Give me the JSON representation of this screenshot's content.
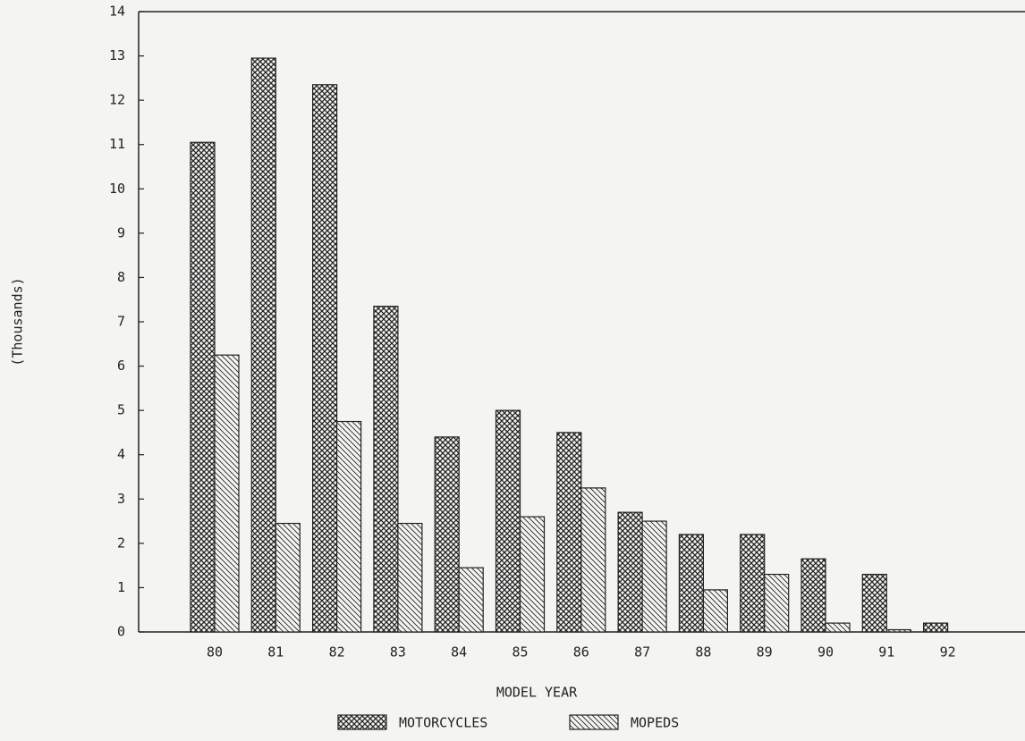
{
  "chart_data": {
    "type": "bar",
    "x_label": "MODEL YEAR",
    "y_label": "(Thousands)",
    "categories": [
      "80",
      "81",
      "82",
      "83",
      "84",
      "85",
      "86",
      "87",
      "88",
      "89",
      "90",
      "91",
      "92"
    ],
    "series": [
      {
        "name": "MOTORCYCLES",
        "color": "#222222",
        "pattern": "crosshatch",
        "values": [
          11.05,
          12.95,
          12.35,
          7.35,
          4.4,
          5.0,
          4.5,
          2.7,
          2.2,
          2.2,
          1.65,
          1.3,
          0.2
        ]
      },
      {
        "name": "MOPEDS",
        "color": "#222222",
        "pattern": "diagonal",
        "values": [
          6.25,
          2.45,
          4.75,
          2.45,
          1.45,
          2.6,
          3.25,
          2.5,
          0.95,
          1.3,
          0.2,
          0.05,
          0
        ]
      }
    ],
    "ylim": [
      0,
      14
    ],
    "yticks": [
      0,
      1,
      2,
      3,
      4,
      5,
      6,
      7,
      8,
      9,
      10,
      11,
      12,
      13,
      14
    ],
    "grid": false
  }
}
